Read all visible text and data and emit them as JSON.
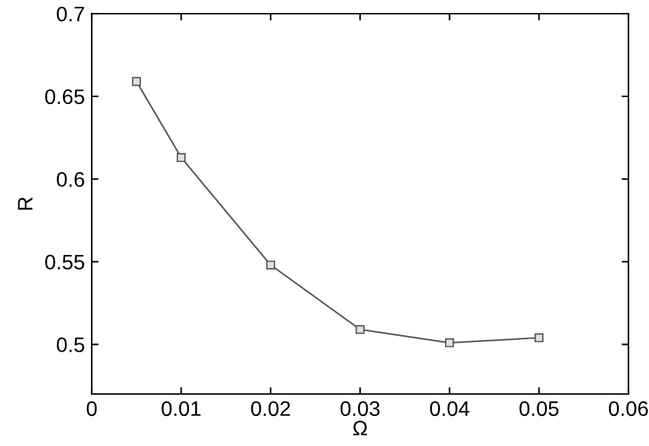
{
  "chart_data": {
    "type": "line",
    "xlabel": "Ω",
    "ylabel": "R",
    "x": [
      0.005,
      0.01,
      0.02,
      0.03,
      0.04,
      0.05
    ],
    "series": [
      {
        "color": "#555555",
        "values": [
          0.659,
          0.613,
          0.548,
          0.509,
          0.501,
          0.504
        ]
      }
    ],
    "xlim": [
      0,
      0.06
    ],
    "xticks": [
      0,
      0.01,
      0.02,
      0.03,
      0.04,
      0.05,
      0.06
    ],
    "ylim": [
      0.47,
      0.7
    ],
    "yticks": [
      0.5,
      0.55,
      0.6,
      0.65,
      0.7
    ],
    "marker": "square",
    "line_style": "solid",
    "grid": false,
    "legend": false
  }
}
